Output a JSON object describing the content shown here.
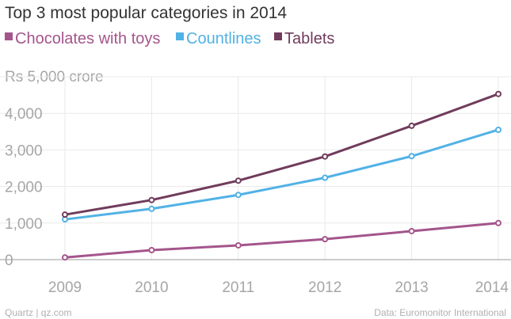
{
  "chart_data": {
    "type": "line",
    "title": "Top 3 most popular categories in 2014",
    "unit_label": "Rs 5,000 crore",
    "x": [
      "2009",
      "2010",
      "2011",
      "2012",
      "2013",
      "2014"
    ],
    "yticks": [
      0,
      1000,
      2000,
      3000,
      4000
    ],
    "ytick_labels": [
      "0",
      "1,000",
      "2,000",
      "3,000",
      "4,000"
    ],
    "ylim": [
      0,
      5000
    ],
    "grid": true,
    "series": [
      {
        "name": "Chocolates with toys",
        "color": "#a4558c",
        "values": [
          60,
          260,
          390,
          560,
          780,
          1000
        ]
      },
      {
        "name": "Countlines",
        "color": "#51b2e5",
        "values": [
          1100,
          1390,
          1770,
          2240,
          2830,
          3550
        ]
      },
      {
        "name": "Tablets",
        "color": "#703c5c",
        "values": [
          1230,
          1630,
          2160,
          2820,
          3660,
          4530
        ]
      }
    ]
  },
  "footer": {
    "source_left": "Quartz | qz.com",
    "source_right": "Data: Euromonitor International"
  }
}
